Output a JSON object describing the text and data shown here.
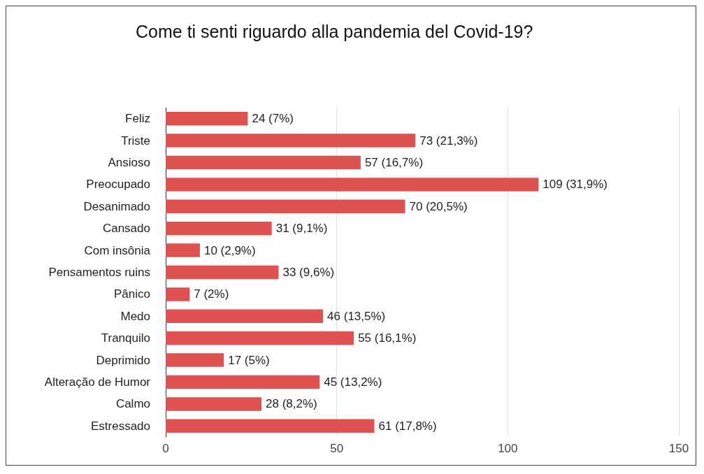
{
  "chart_data": {
    "type": "bar",
    "orientation": "horizontal",
    "title": "Come ti senti riguardo alla pandemia del Covid-19?",
    "categories": [
      "Feliz",
      "Triste",
      "Ansioso",
      "Preocupado",
      "Desanimado",
      "Cansado",
      "Com insônia",
      "Pensamentos ruins",
      "Pânico",
      "Medo",
      "Tranquilo",
      "Deprimido",
      "Alteração de Humor",
      "Calmo",
      "Estressado"
    ],
    "values": [
      24,
      73,
      57,
      109,
      70,
      31,
      10,
      33,
      7,
      46,
      55,
      17,
      45,
      28,
      61
    ],
    "value_labels": [
      "24 (7%)",
      "73 (21,3%)",
      "57 (16,7%)",
      "109 (31,9%)",
      "70 (20,5%)",
      "31 (9,1%)",
      "10 (2,9%)",
      "33 (9,6%)",
      "7 (2%)",
      "46 (13,5%)",
      "55 (16,1%)",
      "17 (5%)",
      "45 (13,2%)",
      "28 (8,2%)",
      "61 (17,8%)"
    ],
    "color": "#e05252",
    "xlim": [
      0,
      150
    ],
    "xticks": [
      0,
      50,
      100,
      150
    ],
    "grid": "x"
  }
}
